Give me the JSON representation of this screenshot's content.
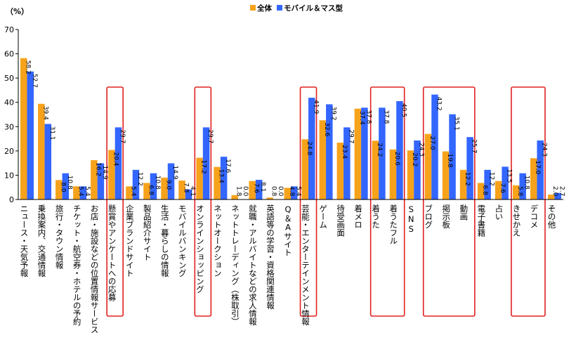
{
  "chart_data": {
    "type": "bar",
    "y_unit_label": "（%）",
    "ylim": [
      0,
      70
    ],
    "y_ticks": [
      0,
      10,
      20,
      30,
      40,
      50,
      60,
      70
    ],
    "grid": false,
    "legend_position": "top-center",
    "series": [
      {
        "name": "全体",
        "color": "#F7A21B",
        "values": [
          58.2,
          39.4,
          8.0,
          5.4,
          16.2,
          20.4,
          5.4,
          6.8,
          9.0,
          7.8,
          17.2,
          13.4,
          1.8,
          7.6,
          0.8,
          4.8,
          24.8,
          32.6,
          23.4,
          37.4,
          24.2,
          20.6,
          20.2,
          27.0,
          19.8,
          12.2,
          6.8,
          7.6,
          5.8,
          17.0,
          2.0
        ]
      },
      {
        "name": "モバイル＆マス型",
        "color": "#3366FF",
        "values": [
          52.7,
          31.1,
          10.8,
          5.4,
          14.9,
          29.7,
          12.2,
          10.8,
          14.9,
          4.1,
          29.7,
          17.6,
          0.0,
          8.1,
          0.0,
          5.4,
          41.9,
          39.2,
          29.7,
          37.8,
          37.8,
          40.5,
          24.3,
          43.2,
          35.1,
          25.7,
          12.2,
          13.5,
          10.8,
          24.3,
          2.7
        ]
      }
    ],
    "categories": [
      "ニュース・天気予報",
      "乗換案内、交通情報",
      "旅行・タウン情報",
      "チケット・航空券・ホテルの予約",
      "お店・施設などの位置情報サービス",
      "懸賞やアンケートへの応募",
      "企業ブランドサイト",
      "製品紹介サイト",
      "生活・暮らしの情報",
      "モバイルバンキング",
      "オンラインショッピング",
      "ネットオークション",
      "ネットトレーディング（株取引）",
      "就職・アルバイトなどの求人情報",
      "英語等の学習・資格関連情報",
      "Q＆Aサイト",
      "芸能・エンターテインメント情報",
      "ゲーム",
      "待受画面",
      "着メロ",
      "着うた",
      "着うたフル",
      "SNS",
      "ブログ",
      "掲示板",
      "動画",
      "電子書籍",
      "占い",
      "きせかえ",
      "デコメ",
      "その他"
    ],
    "highlight_groups": [
      {
        "start": 5,
        "end": 5,
        "color": "#E02020"
      },
      {
        "start": 10,
        "end": 10,
        "color": "#E02020"
      },
      {
        "start": 16,
        "end": 16,
        "color": "#E02020"
      },
      {
        "start": 20,
        "end": 21,
        "color": "#E02020"
      },
      {
        "start": 23,
        "end": 25,
        "color": "#E02020"
      },
      {
        "start": 28,
        "end": 29,
        "color": "#E02020"
      }
    ]
  }
}
